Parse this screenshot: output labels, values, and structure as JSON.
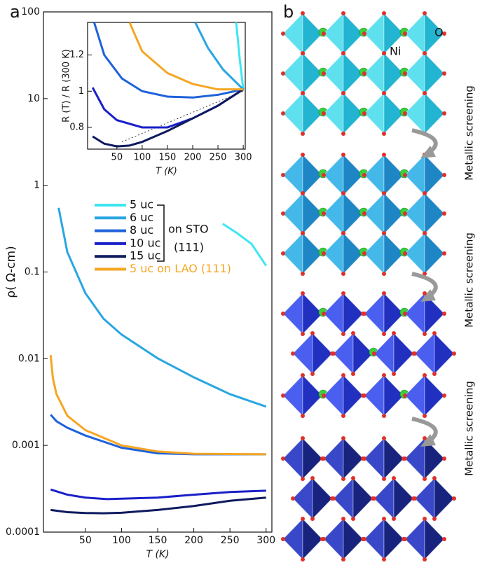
{
  "panel_labels": [
    "a",
    "b"
  ],
  "chart_data": [
    {
      "type": "line",
      "ylog": true,
      "y_label": "ρ( Ω-cm)",
      "x_label": "T (K)",
      "xlim": [
        -8,
        308
      ],
      "xticks": [
        50,
        100,
        150,
        200,
        250,
        300
      ],
      "ylim": [
        0.0001,
        100
      ],
      "yticks": [
        100,
        10,
        1,
        0.1,
        0.01,
        0.001,
        0.0001
      ],
      "legend_note": [
        "on STO",
        "(111)"
      ],
      "series": [
        {
          "name": "5 uc",
          "color": "#3fe6f2",
          "x": [
            240,
            260,
            280,
            300
          ],
          "values": [
            0.36,
            0.28,
            0.21,
            0.118
          ]
        },
        {
          "name": "6 uc",
          "color": "#29a6e2",
          "x": [
            13,
            25,
            50,
            75,
            100,
            150,
            200,
            250,
            300
          ],
          "values": [
            0.55,
            0.17,
            0.057,
            0.029,
            0.019,
            0.0101,
            0.0061,
            0.0039,
            0.0028
          ]
        },
        {
          "name": "8 uc",
          "color": "#1f62da",
          "x": [
            2,
            10,
            25,
            50,
            100,
            150,
            200,
            300
          ],
          "values": [
            0.00226,
            0.0019,
            0.0016,
            0.0013,
            0.00094,
            0.00081,
            0.00079,
            0.00079
          ]
        },
        {
          "name": "10 uc",
          "color": "#1a1fc8",
          "x": [
            2,
            25,
            50,
            80,
            150,
            200,
            250,
            300
          ],
          "values": [
            0.00031,
            0.00027,
            0.00025,
            0.00024,
            0.00025,
            0.00027,
            0.00029,
            0.0003
          ]
        },
        {
          "name": "15 uc",
          "color": "#0e1a5e",
          "x": [
            2,
            25,
            50,
            75,
            100,
            150,
            200,
            250,
            300
          ],
          "values": [
            0.00018,
            0.00017,
            0.000166,
            0.000165,
            0.000167,
            0.00018,
            0.0002,
            0.00023,
            0.00025
          ]
        },
        {
          "name": "5 uc on LAO (111)",
          "color": "#f5a623",
          "x": [
            2,
            5,
            10,
            25,
            50,
            100,
            150,
            200,
            300
          ],
          "values": [
            0.011,
            0.006,
            0.0039,
            0.0022,
            0.0015,
            0.001,
            0.00085,
            0.0008,
            0.00079
          ]
        }
      ]
    },
    {
      "type": "line",
      "y_label": "R (T) / R (300 K)",
      "x_label": "T (K)",
      "xlim": [
        -8,
        304
      ],
      "xticks": [
        50,
        100,
        150,
        200,
        250,
        300
      ],
      "ylim": [
        0.68,
        1.38
      ],
      "yticks": [
        0.8,
        1.0,
        1.2
      ],
      "series": [
        {
          "color": "#333333",
          "dash": true,
          "x": [
            60,
            300
          ],
          "values": [
            0.72,
            1.0
          ]
        },
        {
          "color": "#3fe6f2",
          "x": [
            286,
            293,
            300
          ],
          "values": [
            1.38,
            1.18,
            1.01
          ]
        },
        {
          "color": "#29a6e2",
          "x": [
            205,
            230,
            260,
            300
          ],
          "values": [
            1.38,
            1.24,
            1.12,
            1.01
          ]
        },
        {
          "color": "#1f62da",
          "x": [
            5,
            25,
            60,
            100,
            150,
            200,
            250,
            300
          ],
          "values": [
            1.38,
            1.2,
            1.07,
            1.0,
            0.97,
            0.965,
            0.98,
            1.01
          ]
        },
        {
          "color": "#1a1fc8",
          "x": [
            2,
            25,
            50,
            100,
            150,
            200,
            250,
            300
          ],
          "values": [
            1.02,
            0.9,
            0.84,
            0.8,
            0.8,
            0.85,
            0.92,
            1.01
          ]
        },
        {
          "color": "#0e1a5e",
          "x": [
            2,
            25,
            50,
            75,
            100,
            150,
            200,
            250,
            300
          ],
          "values": [
            0.75,
            0.71,
            0.695,
            0.7,
            0.72,
            0.78,
            0.85,
            0.92,
            1.01
          ]
        },
        {
          "color": "#f5a623",
          "x": [
            75,
            100,
            150,
            200,
            250,
            300
          ],
          "values": [
            1.38,
            1.22,
            1.1,
            1.04,
            1.01,
            1.01
          ]
        }
      ]
    }
  ],
  "structure": {
    "atom_labels": [
      "Ni",
      "O"
    ],
    "annotations": [
      "Metallic screening",
      "Metallic screening",
      "Metallic screening"
    ]
  }
}
